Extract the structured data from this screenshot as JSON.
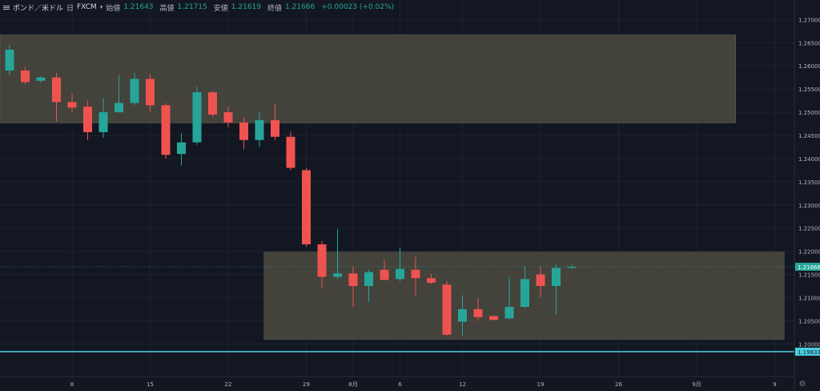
{
  "header": {
    "symbol": "ポンド／米ドル",
    "interval": "日",
    "source": "FXCM",
    "open_label": "始値",
    "open": "1.21643",
    "high_label": "高値",
    "high": "1.21715",
    "low_label": "安値",
    "low": "1.21619",
    "close_label": "終値",
    "close": "1.21666",
    "change": "+0.00023 (+0.02%)"
  },
  "colors": {
    "background": "#131722",
    "up": "#26a69a",
    "down": "#ef5350",
    "grid": "#1e222d",
    "zone": "#4c4a40",
    "current_price_bg": "#26a69a",
    "line_price_bg": "#4dd0e1",
    "line_color": "#4dd0e1"
  },
  "chart_data": {
    "type": "candlestick",
    "y_range": [
      1.1978,
      1.2718
    ],
    "y_ticks": [
      "1.27000",
      "1.26500",
      "1.26000",
      "1.25500",
      "1.25000",
      "1.24500",
      "1.24000",
      "1.23500",
      "1.23000",
      "1.22500",
      "1.22000",
      "1.21500",
      "1.21000",
      "1.20500",
      "1.20000"
    ],
    "x_ticks": [
      {
        "label": "8",
        "index": 4
      },
      {
        "label": "15",
        "index": 9
      },
      {
        "label": "22",
        "index": 14
      },
      {
        "label": "29",
        "index": 19
      },
      {
        "label": "8月",
        "index": 22
      },
      {
        "label": "6",
        "index": 25
      },
      {
        "label": "12",
        "index": 29
      },
      {
        "label": "19",
        "index": 34
      },
      {
        "label": "26",
        "index": 39
      },
      {
        "label": "9月",
        "index": 44
      },
      {
        "label": "9",
        "index": 49
      }
    ],
    "candles": [
      {
        "o": 1.259,
        "h": 1.2645,
        "l": 1.258,
        "c": 1.2635
      },
      {
        "o": 1.259,
        "h": 1.2598,
        "l": 1.256,
        "c": 1.2565
      },
      {
        "o": 1.2568,
        "h": 1.2578,
        "l": 1.2563,
        "c": 1.2575
      },
      {
        "o": 1.2575,
        "h": 1.2585,
        "l": 1.248,
        "c": 1.2522
      },
      {
        "o": 1.2522,
        "h": 1.254,
        "l": 1.25,
        "c": 1.251
      },
      {
        "o": 1.2512,
        "h": 1.2525,
        "l": 1.244,
        "c": 1.2457
      },
      {
        "o": 1.2457,
        "h": 1.253,
        "l": 1.2445,
        "c": 1.25
      },
      {
        "o": 1.25,
        "h": 1.258,
        "l": 1.25,
        "c": 1.252
      },
      {
        "o": 1.252,
        "h": 1.2585,
        "l": 1.2515,
        "c": 1.2572
      },
      {
        "o": 1.2572,
        "h": 1.2582,
        "l": 1.25,
        "c": 1.2515
      },
      {
        "o": 1.2515,
        "h": 1.252,
        "l": 1.24,
        "c": 1.2408
      },
      {
        "o": 1.241,
        "h": 1.2455,
        "l": 1.2385,
        "c": 1.2435
      },
      {
        "o": 1.2435,
        "h": 1.2555,
        "l": 1.243,
        "c": 1.2543
      },
      {
        "o": 1.2543,
        "h": 1.2545,
        "l": 1.249,
        "c": 1.2495
      },
      {
        "o": 1.25,
        "h": 1.2512,
        "l": 1.2468,
        "c": 1.2478
      },
      {
        "o": 1.2478,
        "h": 1.249,
        "l": 1.242,
        "c": 1.244
      },
      {
        "o": 1.244,
        "h": 1.25,
        "l": 1.2425,
        "c": 1.2483
      },
      {
        "o": 1.2483,
        "h": 1.2518,
        "l": 1.244,
        "c": 1.2447
      },
      {
        "o": 1.2447,
        "h": 1.2458,
        "l": 1.2375,
        "c": 1.238
      },
      {
        "o": 1.2375,
        "h": 1.238,
        "l": 1.221,
        "c": 1.2215
      },
      {
        "o": 1.2215,
        "h": 1.2222,
        "l": 1.212,
        "c": 1.2145
      },
      {
        "o": 1.2145,
        "h": 1.2248,
        "l": 1.214,
        "c": 1.2152
      },
      {
        "o": 1.2152,
        "h": 1.2168,
        "l": 1.208,
        "c": 1.2125
      },
      {
        "o": 1.2125,
        "h": 1.216,
        "l": 1.209,
        "c": 1.2155
      },
      {
        "o": 1.216,
        "h": 1.2182,
        "l": 1.2138,
        "c": 1.2138
      },
      {
        "o": 1.214,
        "h": 1.2208,
        "l": 1.2135,
        "c": 1.2162
      },
      {
        "o": 1.216,
        "h": 1.2188,
        "l": 1.2105,
        "c": 1.2142
      },
      {
        "o": 1.2142,
        "h": 1.2152,
        "l": 1.213,
        "c": 1.2132
      },
      {
        "o": 1.2128,
        "h": 1.2135,
        "l": 1.2018,
        "c": 1.202
      },
      {
        "o": 1.2048,
        "h": 1.2105,
        "l": 1.2018,
        "c": 1.2075
      },
      {
        "o": 1.2075,
        "h": 1.2098,
        "l": 1.205,
        "c": 1.2058
      },
      {
        "o": 1.206,
        "h": 1.2062,
        "l": 1.205,
        "c": 1.2052
      },
      {
        "o": 1.2055,
        "h": 1.2145,
        "l": 1.2053,
        "c": 1.208
      },
      {
        "o": 1.208,
        "h": 1.2168,
        "l": 1.2078,
        "c": 1.214
      },
      {
        "o": 1.215,
        "h": 1.2168,
        "l": 1.21,
        "c": 1.2125
      },
      {
        "o": 1.2125,
        "h": 1.2172,
        "l": 1.2063,
        "c": 1.2164
      },
      {
        "o": 1.21643,
        "h": 1.21715,
        "l": 1.21619,
        "c": 1.21666
      }
    ],
    "zones": [
      {
        "start_index": -1,
        "end_index": 46.5,
        "top": 1.2667,
        "bottom": 1.2477
      },
      {
        "start_index": 16.3,
        "end_index": 49.6,
        "top": 1.2198,
        "bottom": 1.201
      }
    ],
    "horizontal_lines": [
      {
        "price": 1.19833,
        "label": "1.19833"
      }
    ],
    "current_price": {
      "price": 1.21666,
      "label": "1.21666"
    }
  }
}
